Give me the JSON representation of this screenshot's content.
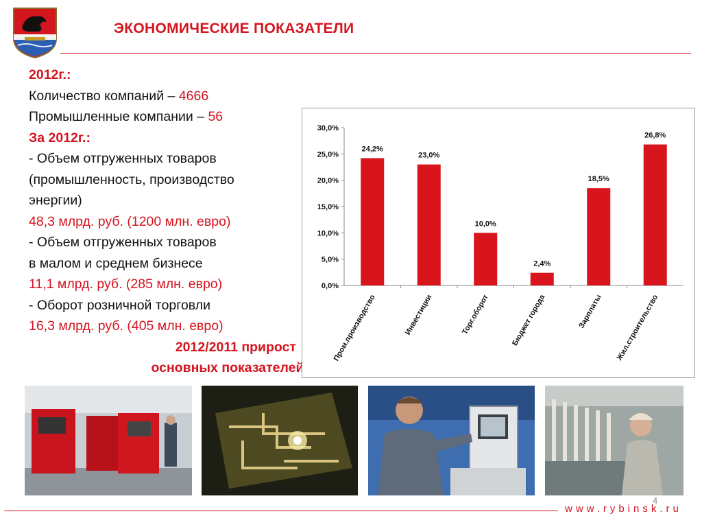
{
  "header": {
    "title": "ЭКОНОМИЧЕСКИЕ ПОКАЗАТЕЛИ"
  },
  "summary": {
    "year_2012": "2012г.:",
    "companies_label": "Количество компаний – ",
    "companies_value": "4666",
    "industrial_label": "Промышленные компании – ",
    "industrial_value": "56",
    "for_2012": "За 2012г.:",
    "shipped_label_1": "- Объем отгруженных товаров",
    "shipped_label_2": "(промышленность, производство",
    "shipped_label_3": "энергии)",
    "shipped_value": "48,3 млрд. руб. (1200 млн. евро)",
    "sme_label_1": "- Объем отгруженных товаров",
    "sme_label_2": "в малом и среднем бизнесе",
    "sme_value": "11,1 млрд. руб. (285 млн. евро)",
    "retail_label": "- Оборот розничной торговли",
    "retail_value": "16,3 млрд. руб. (405 млн. евро)",
    "growth_line_1": "2012/2011 прирост",
    "growth_line_2": "основных показателей:"
  },
  "chart_data": {
    "type": "bar",
    "categories": [
      "Пром.производство",
      "Инвестиции",
      "Торг.оборот",
      "Бюджет города",
      "Зарплаты",
      "Жил.строительство"
    ],
    "values": [
      24.2,
      23.0,
      10.0,
      2.4,
      18.5,
      26.8
    ],
    "value_labels": [
      "24,2%",
      "23,0%",
      "10,0%",
      "2,4%",
      "18,5%",
      "26,8%"
    ],
    "yticks": [
      "0,0%",
      "5,0%",
      "10,0%",
      "15,0%",
      "20,0%",
      "25,0%",
      "30,0%"
    ],
    "ylim": [
      0,
      30
    ],
    "bar_color": "#d8141c",
    "grid": false
  },
  "footer": {
    "page_number": "4",
    "website": "www.rybinsk.ru"
  },
  "colors": {
    "accent": "#d4141f"
  }
}
